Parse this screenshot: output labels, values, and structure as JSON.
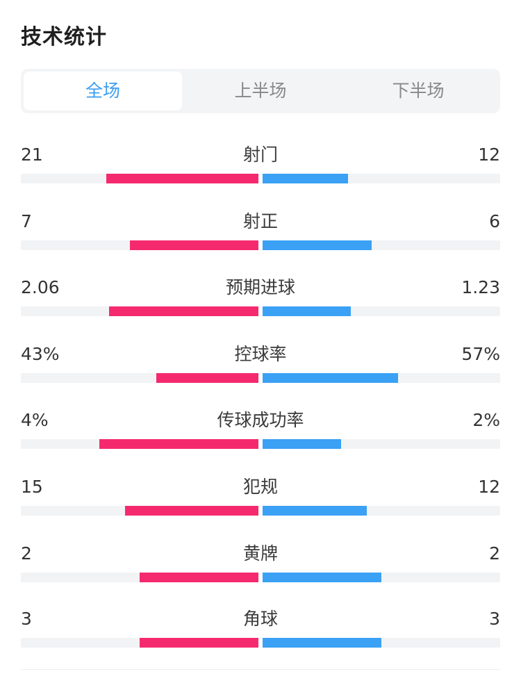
{
  "header": {
    "title": "技术统计"
  },
  "tabs": [
    {
      "label": "全场",
      "active": true
    },
    {
      "label": "上半场",
      "active": false
    },
    {
      "label": "下半场",
      "active": false
    }
  ],
  "colors": {
    "home": "#f52a6e",
    "away": "#3aa1f5",
    "track": "#f2f3f5",
    "active_tab": "#3a9df0"
  },
  "stats": [
    {
      "name": "射门",
      "home": "21",
      "away": "12",
      "home_fill": 0.64,
      "away_fill": 0.36
    },
    {
      "name": "射正",
      "home": "7",
      "away": "6",
      "home_fill": 0.54,
      "away_fill": 0.46
    },
    {
      "name": "预期进球",
      "home": "2.06",
      "away": "1.23",
      "home_fill": 0.63,
      "away_fill": 0.37
    },
    {
      "name": "控球率",
      "home": "43%",
      "away": "57%",
      "home_fill": 0.43,
      "away_fill": 0.57
    },
    {
      "name": "传球成功率",
      "home": "4%",
      "away": "2%",
      "home_fill": 0.67,
      "away_fill": 0.33
    },
    {
      "name": "犯规",
      "home": "15",
      "away": "12",
      "home_fill": 0.56,
      "away_fill": 0.44
    },
    {
      "name": "黄牌",
      "home": "2",
      "away": "2",
      "home_fill": 0.5,
      "away_fill": 0.5
    },
    {
      "name": "角球",
      "home": "3",
      "away": "3",
      "home_fill": 0.5,
      "away_fill": 0.5
    }
  ]
}
